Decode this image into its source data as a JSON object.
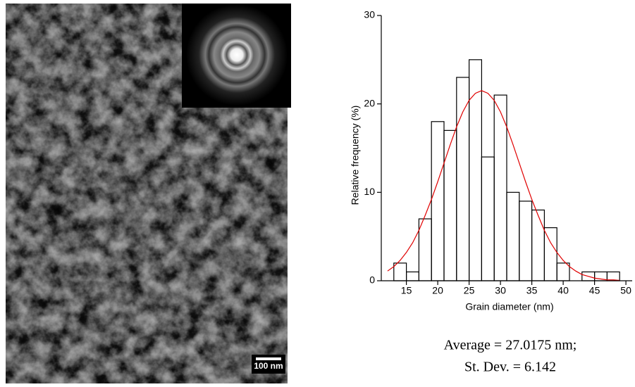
{
  "image": {
    "scale_bar": "100 nm"
  },
  "chart_data": {
    "type": "histogram",
    "xlabel": "Grain diameter (nm)",
    "ylabel": "Relative frequency (%)",
    "bins": [
      13,
      15,
      17,
      19,
      21,
      23,
      25,
      27,
      29,
      31,
      33,
      35,
      37,
      39,
      41,
      43,
      45,
      47,
      49
    ],
    "values": [
      2,
      1,
      7,
      18,
      17,
      23,
      25,
      14,
      21,
      10,
      9,
      8,
      6,
      2,
      0,
      1,
      1,
      1
    ],
    "color": "#000000",
    "fit": {
      "color": "#e00000",
      "x": [
        12,
        13,
        14,
        15,
        16,
        17,
        18,
        19,
        20,
        21,
        22,
        23,
        24,
        25,
        26,
        27,
        28,
        29,
        30,
        31,
        32,
        33,
        34,
        35,
        36,
        37,
        38,
        39,
        40,
        41,
        42,
        43,
        44,
        45,
        46,
        47,
        48,
        49
      ],
      "values": [
        1.1,
        1.6,
        2.3,
        3.2,
        4.3,
        5.7,
        7.4,
        9.2,
        11.2,
        13.3,
        15.4,
        17.4,
        19.1,
        20.4,
        21.2,
        21.5,
        21.2,
        20.4,
        19.1,
        17.4,
        15.4,
        13.3,
        11.2,
        9.2,
        7.4,
        5.7,
        4.3,
        3.2,
        2.3,
        1.6,
        1.1,
        0.7,
        0.5,
        0.3,
        0.2,
        0.1,
        0.1,
        0.04
      ]
    },
    "xlim": [
      11,
      51
    ],
    "ylim": [
      0,
      30
    ],
    "xticks": [
      15,
      20,
      25,
      30,
      35,
      40,
      45,
      50
    ],
    "yticks": [
      0,
      10,
      20,
      30
    ],
    "annotations": [
      "Average = 27.0175 nm;",
      "St. Dev. = 6.142"
    ]
  }
}
